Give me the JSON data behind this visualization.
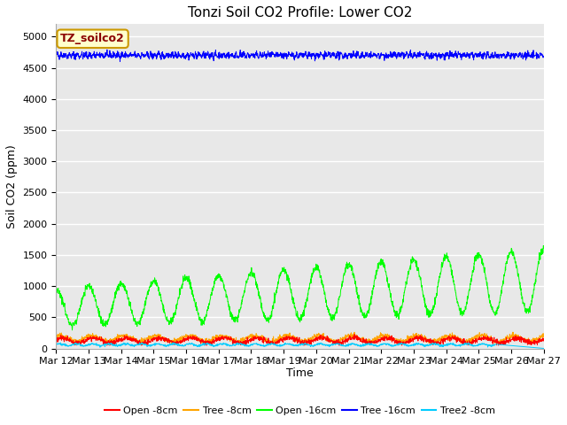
{
  "title": "Tonzi Soil CO2 Profile: Lower CO2",
  "xlabel": "Time",
  "ylabel": "Soil CO2 (ppm)",
  "ylim": [
    0,
    5200
  ],
  "yticks": [
    0,
    500,
    1000,
    1500,
    2000,
    2500,
    3000,
    3500,
    4000,
    4500,
    5000
  ],
  "x_labels": [
    "Mar 12",
    "Mar 13",
    "Mar 14",
    "Mar 15",
    "Mar 16",
    "Mar 17",
    "Mar 18",
    "Mar 19",
    "Mar 20",
    "Mar 21",
    "Mar 22",
    "Mar 23",
    "Mar 24",
    "Mar 25",
    "Mar 26",
    "Mar 27"
  ],
  "legend_label": "TZ_soilco2",
  "series_labels": [
    "Open -8cm",
    "Tree -8cm",
    "Open -16cm",
    "Tree -16cm",
    "Tree2 -8cm"
  ],
  "series_colors": [
    "#ff0000",
    "#ffa500",
    "#00ff00",
    "#0000ff",
    "#00ccff"
  ],
  "background_color": "#e8e8e8",
  "title_fontsize": 11,
  "axis_fontsize": 9,
  "tick_fontsize": 8,
  "n_points": 2000,
  "days": 15
}
